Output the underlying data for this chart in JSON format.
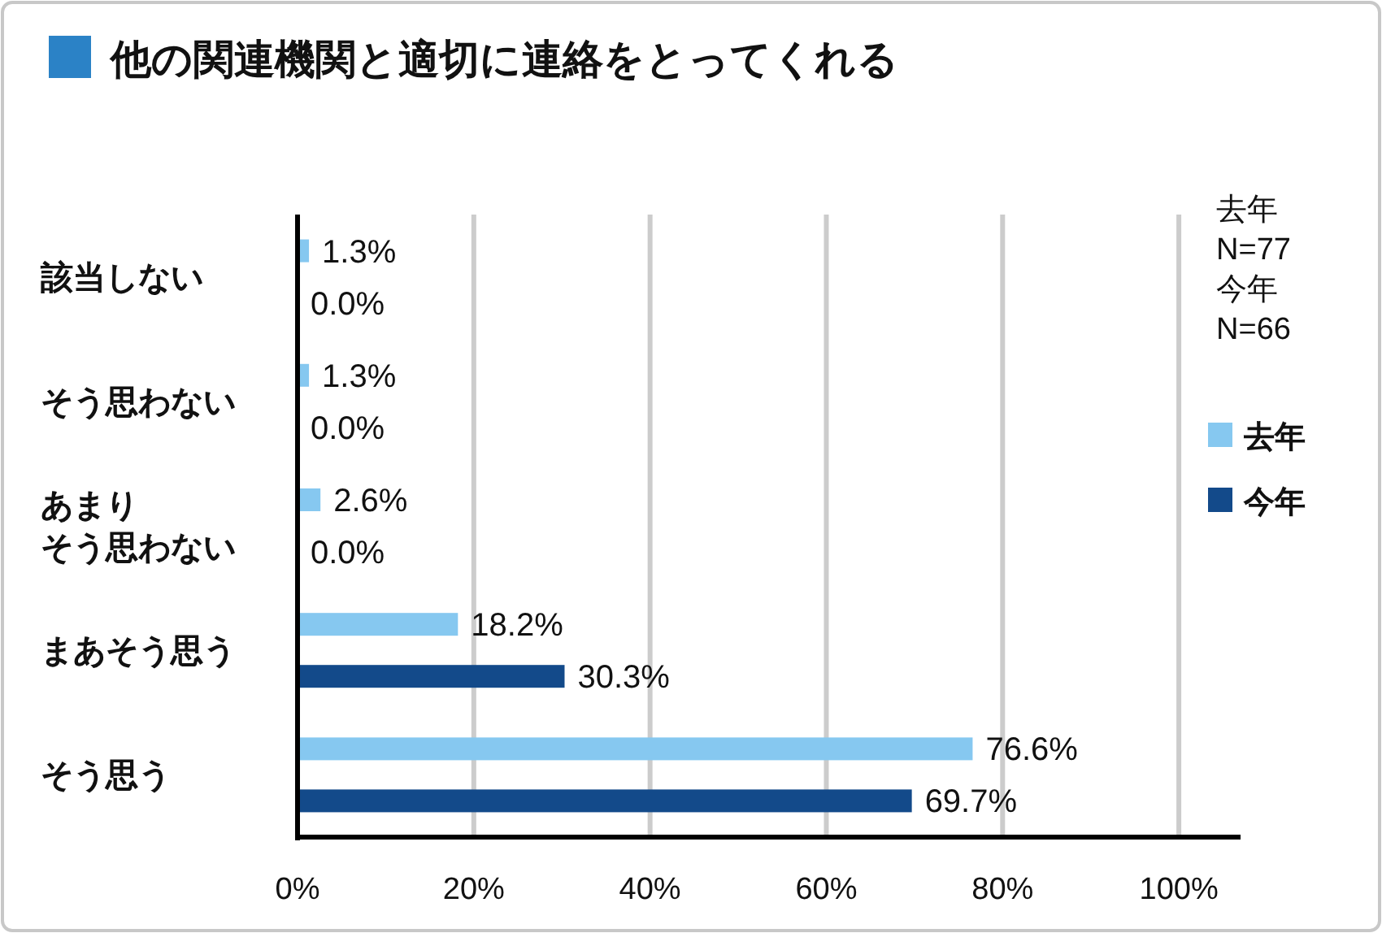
{
  "chart_data": {
    "type": "bar",
    "orientation": "horizontal",
    "title": "他の関連機関と適切に連絡をとってくれる",
    "categories": [
      "該当しない",
      "そう思わない",
      "あまりそう思わない",
      "まあそう思う",
      "そう思う"
    ],
    "series": [
      {
        "name": "去年",
        "color": "#86c8f0",
        "values": [
          1.3,
          1.3,
          2.6,
          18.2,
          76.6
        ],
        "value_labels": [
          "1.3%",
          "1.3%",
          "2.6%",
          "18.2%",
          "76.6%"
        ]
      },
      {
        "name": "今年",
        "color": "#134a8a",
        "values": [
          0.0,
          0.0,
          0.0,
          30.3,
          69.7
        ],
        "value_labels": [
          "0.0%",
          "0.0%",
          "0.0%",
          "30.3%",
          "69.7%"
        ]
      }
    ],
    "xlim": [
      0,
      107
    ],
    "xticks": [
      {
        "value": 0,
        "label": "0%"
      },
      {
        "value": 20,
        "label": "20%"
      },
      {
        "value": 40,
        "label": "40%"
      },
      {
        "value": 60,
        "label": "60%"
      },
      {
        "value": 80,
        "label": "80%"
      },
      {
        "value": 100,
        "label": "100%"
      }
    ],
    "grid": "x",
    "legend": "right",
    "annotations": [
      "去年\nN=77\n今年\nN=66"
    ]
  }
}
